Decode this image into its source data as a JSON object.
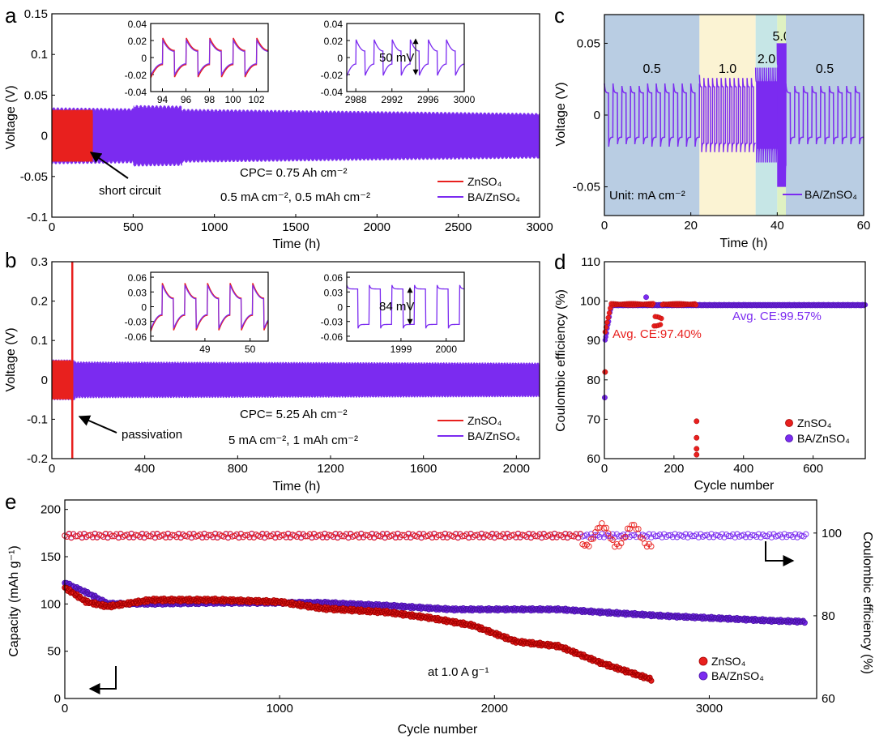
{
  "figure": {
    "panel_labels": [
      "a",
      "b",
      "c",
      "d",
      "e"
    ],
    "colors": {
      "znso4": "#e8201e",
      "ba": "#7b2bf0",
      "bg_0_5": "#b9cde3",
      "bg_1_0": "#fbf3d3",
      "bg_2_0": "#c6e6e6",
      "bg_5_0": "#dff1c2"
    }
  },
  "chart_data": [
    {
      "id": "a",
      "type": "line",
      "xlabel": "Time (h)",
      "ylabel": "Voltage (V)",
      "xlim": [
        0,
        3000
      ],
      "ylim": [
        -0.1,
        0.15
      ],
      "xticks": [
        "0",
        "500",
        "1000",
        "1500",
        "2000",
        "2500",
        "3000"
      ],
      "yticks": [
        "-0.1",
        "-0.05",
        "0",
        "0.05",
        "0.1",
        "0.15"
      ],
      "series": [
        {
          "name": "ZnSO4",
          "legend": "ZnSO₄",
          "x_range": [
            0,
            250
          ],
          "amplitude_v": 0.035
        },
        {
          "name": "BA/ZnSO4",
          "legend": "BA/ZnSO₄",
          "x_range": [
            0,
            3000
          ],
          "amplitude_v": [
            0.035,
            0.028
          ]
        }
      ],
      "annotations": {
        "arrow": "short circuit",
        "cpc": "CPC= 0.75 Ah cm⁻²",
        "conditions": "0.5 mA cm⁻², 0.5 mAh cm⁻²"
      },
      "insets": [
        {
          "xticks": [
            "94",
            "96",
            "98",
            "100",
            "102"
          ],
          "yticks": [
            "0.04",
            "0.02",
            "0",
            "-0.02",
            "-0.04"
          ],
          "xlim": [
            93,
            103
          ],
          "ylim": [
            -0.04,
            0.04
          ]
        },
        {
          "xticks": [
            "2988",
            "2992",
            "2996",
            "3000"
          ],
          "yticks": [
            "0.04",
            "0.02",
            "0",
            "-0.02",
            "-0.04"
          ],
          "xlim": [
            2987,
            3000
          ],
          "ylim": [
            -0.04,
            0.04
          ],
          "label": "50 mV"
        }
      ]
    },
    {
      "id": "b",
      "type": "line",
      "xlabel": "Time (h)",
      "ylabel": "Voltage (V)",
      "xlim": [
        0,
        2100
      ],
      "ylim": [
        -0.2,
        0.3
      ],
      "xticks": [
        "0",
        "400",
        "800",
        "1200",
        "1600",
        "2000"
      ],
      "yticks": [
        "-0.2",
        "-0.1",
        "0",
        "0.1",
        "0.2",
        "0.3"
      ],
      "series": [
        {
          "name": "ZnSO4",
          "legend": "ZnSO₄",
          "x_range": [
            0,
            90
          ],
          "amplitude_v": 0.05,
          "spike_at_h": 88
        },
        {
          "name": "BA/ZnSO4",
          "legend": "BA/ZnSO₄",
          "x_range": [
            0,
            2100
          ],
          "amplitude_v": 0.045
        }
      ],
      "annotations": {
        "arrow": "passivation",
        "cpc": "CPC= 5.25 Ah cm⁻²",
        "conditions": "5 mA cm⁻², 1 mAh cm⁻²"
      },
      "insets": [
        {
          "xticks": [
            "49",
            "50"
          ],
          "yticks": [
            "0.06",
            "0.03",
            "0",
            "-0.03",
            "-0.06"
          ],
          "xlim": [
            47.8,
            50.4
          ],
          "ylim": [
            -0.07,
            0.07
          ]
        },
        {
          "xticks": [
            "1999",
            "2000"
          ],
          "yticks": [
            "0.06",
            "0.03",
            "0",
            "-0.03",
            "-0.06"
          ],
          "xlim": [
            1997.8,
            2000.4
          ],
          "ylim": [
            -0.07,
            0.07
          ],
          "label": "84 mV"
        }
      ]
    },
    {
      "id": "c",
      "type": "line",
      "xlabel": "Time (h)",
      "ylabel": "Voltage (V)",
      "xlim": [
        0,
        60
      ],
      "ylim": [
        -0.07,
        0.07
      ],
      "xticks": [
        "0",
        "20",
        "40",
        "60"
      ],
      "yticks": [
        "0.05",
        "0",
        "-0.05"
      ],
      "regions": [
        {
          "label": "0.5",
          "x": [
            0,
            22
          ],
          "bg": "bg_0_5"
        },
        {
          "label": "1.0",
          "x": [
            22,
            35
          ],
          "bg": "bg_1_0"
        },
        {
          "label": "2.0",
          "x": [
            35,
            40
          ],
          "bg": "bg_2_0"
        },
        {
          "label": "5.0",
          "x": [
            40,
            42
          ],
          "bg": "bg_5_0"
        },
        {
          "label": "0.5",
          "x": [
            42,
            60
          ],
          "bg": "bg_0_5"
        }
      ],
      "series": [
        {
          "name": "BA/ZnSO4",
          "legend": "BA/ZnSO₄"
        }
      ],
      "unit_label": "Unit: mA cm⁻²"
    },
    {
      "id": "d",
      "type": "scatter",
      "xlabel": "Cycle number",
      "ylabel": "Coulombic efficiency (%)",
      "xlim": [
        0,
        750
      ],
      "ylim": [
        60,
        110
      ],
      "xticks": [
        "0",
        "200",
        "400",
        "600"
      ],
      "yticks": [
        "60",
        "70",
        "80",
        "90",
        "100",
        "110"
      ],
      "series": [
        {
          "name": "ZnSO4",
          "legend": "ZnSO₄",
          "outliers": [
            [
              265,
              69.5
            ],
            [
              265,
              65.3
            ],
            [
              265,
              62.5
            ],
            [
              265,
              61.0
            ],
            [
              2,
              82.0
            ]
          ]
        },
        {
          "name": "BA/ZnSO4",
          "legend": "BA/ZnSO₄",
          "outliers": [
            [
              1,
              75.5
            ],
            [
              120,
              101
            ]
          ]
        }
      ],
      "annotations": {
        "znso4_avg": "Avg. CE:97.40%",
        "ba_avg": "Avg. CE:99.57%"
      }
    },
    {
      "id": "e",
      "type": "scatter",
      "xlabel": "Cycle number",
      "ylabel": "Capacity (mAh g⁻¹)",
      "ylabel_right": "Coulombic efficiency (%)",
      "xlim": [
        0,
        3500
      ],
      "ylim": [
        0,
        210
      ],
      "ylim_right": [
        60,
        108
      ],
      "xticks": [
        "0",
        "1000",
        "2000",
        "3000"
      ],
      "yticks": [
        "0",
        "50",
        "100",
        "150",
        "200"
      ],
      "yticks_right": [
        "60",
        "80",
        "100"
      ],
      "series": [
        {
          "name": "ZnSO4 capacity",
          "legend": "ZnSO₄",
          "x": [
            0,
            100,
            200,
            400,
            700,
            1000,
            1200,
            1500,
            1700,
            1900,
            2100,
            2300,
            2500,
            2730
          ],
          "y": [
            120,
            105,
            100,
            107,
            107,
            105,
            98,
            94,
            88,
            80,
            63,
            58,
            40,
            23
          ]
        },
        {
          "name": "BA/ZnSO4 capacity",
          "legend": "BA/ZnSO₄",
          "x": [
            0,
            100,
            200,
            400,
            700,
            1000,
            1200,
            1500,
            1800,
            2000,
            2300,
            2500,
            2800,
            3000,
            3300,
            3450
          ],
          "y": [
            125,
            115,
            103,
            103,
            104,
            104,
            104,
            101,
            97,
            97,
            97,
            94,
            90,
            88,
            85,
            84
          ]
        },
        {
          "name": "ZnSO4 CE",
          "x": [
            0,
            2730
          ],
          "y": [
            100,
            100
          ]
        },
        {
          "name": "BA/ZnSO4 CE",
          "x": [
            0,
            3450
          ],
          "y": [
            100,
            100
          ]
        }
      ],
      "annotations": {
        "condition": "at 1.0 A g⁻¹"
      }
    }
  ]
}
